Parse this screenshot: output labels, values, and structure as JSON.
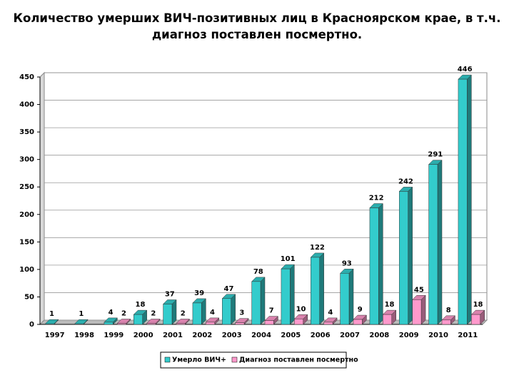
{
  "chart_data": {
    "type": "bar",
    "title": "Количество умерших ВИЧ-позитивных лиц в Красноярском крае, в т.ч. диагноз поставлен посмертно.",
    "categories": [
      "1997",
      "1998",
      "1999",
      "2000",
      "2001",
      "2002",
      "2003",
      "2004",
      "2005",
      "2006",
      "2007",
      "2008",
      "2009",
      "2010",
      "2011"
    ],
    "series": [
      {
        "name": "Умерло ВИЧ+",
        "color": "#33cccc",
        "values": [
          1,
          1,
          4,
          18,
          37,
          39,
          47,
          78,
          101,
          122,
          93,
          212,
          242,
          291,
          446
        ]
      },
      {
        "name": "Диагноз поставлен посмертно",
        "color": "#ff99cc",
        "values": [
          null,
          null,
          2,
          2,
          2,
          4,
          3,
          7,
          10,
          4,
          9,
          18,
          45,
          8,
          18
        ]
      }
    ],
    "ylim": [
      0,
      450
    ],
    "yticks": [
      0,
      50,
      100,
      150,
      200,
      250,
      300,
      350,
      400,
      450
    ],
    "grid": true,
    "legend": "bottom"
  }
}
